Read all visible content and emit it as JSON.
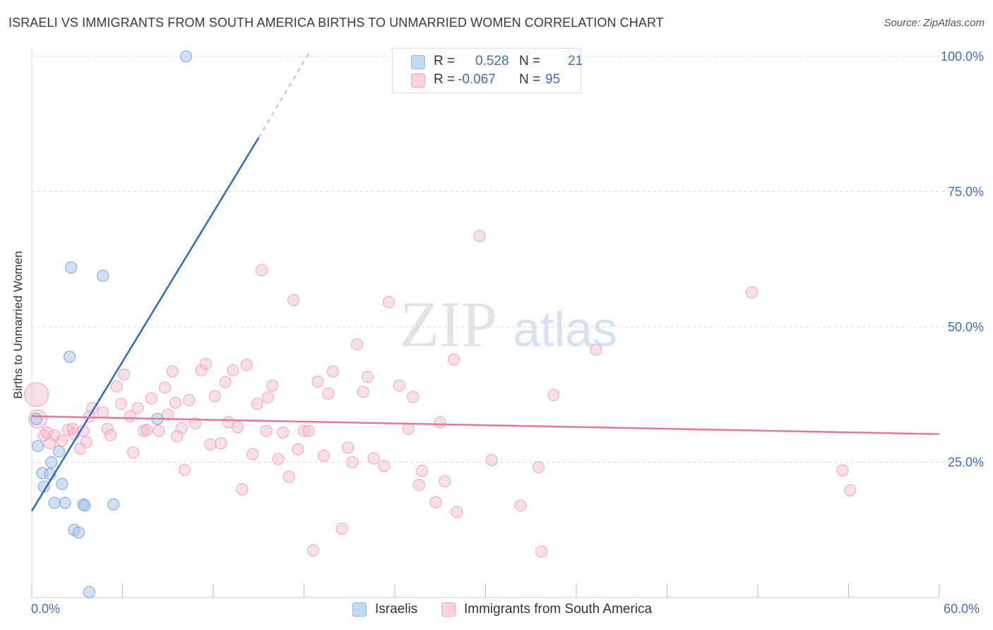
{
  "title": "ISRAELI VS IMMIGRANTS FROM SOUTH AMERICA BIRTHS TO UNMARRIED WOMEN CORRELATION CHART",
  "source": "Source: ZipAtlas.com",
  "watermark": {
    "zip": "ZIP",
    "atlas": "atlas"
  },
  "legend_top": {
    "rows": [
      {
        "r_label": "R =",
        "r_value": "0.528",
        "n_label": "N =",
        "n_value": "21",
        "color": "#aac8f0"
      },
      {
        "r_label": "R =",
        "r_value": "-0.067",
        "n_label": "N =",
        "n_value": "95",
        "color": "#f6b8cb"
      }
    ]
  },
  "legend_bottom": [
    {
      "label": "Israelis",
      "color": "#aac8f0"
    },
    {
      "label": "Immigrants from South America",
      "color": "#f6b8cb"
    }
  ],
  "colors": {
    "blue_line": "#2a6cc8",
    "pink_line": "#e8769a",
    "blue_fill": "#aac8f0",
    "pink_fill": "#f6b8cb",
    "axis_text": "#3c6fc2"
  },
  "chart_data": {
    "type": "scatter",
    "title": "ISRAELI VS IMMIGRANTS FROM SOUTH AMERICA BIRTHS TO UNMARRIED WOMEN CORRELATION CHART",
    "xlabel": "",
    "ylabel": "Births to Unmarried Women",
    "xlim": [
      0,
      60
    ],
    "ylim": [
      0,
      100
    ],
    "x_tick_labels": [
      "0.0%",
      "60.0%"
    ],
    "y_tick_labels": [
      "25.0%",
      "50.0%",
      "75.0%",
      "100.0%"
    ],
    "y_ticks": [
      25,
      50,
      75,
      100
    ],
    "grid": true,
    "series": [
      {
        "name": "Israelis",
        "color": "#aac8f0",
        "r": 0.528,
        "n": 21,
        "trend": {
          "x": [
            0,
            15
          ],
          "y": [
            16,
            85
          ],
          "dashed_to": {
            "x": 18.4,
            "y": 101
          }
        },
        "points": [
          [
            10.2,
            100.0
          ],
          [
            2.6,
            61.0
          ],
          [
            4.7,
            59.5
          ],
          [
            2.5,
            44.5
          ],
          [
            8.3,
            33.0
          ],
          [
            0.3,
            33.0
          ],
          [
            0.4,
            28.0
          ],
          [
            1.8,
            27.0
          ],
          [
            1.3,
            25.0
          ],
          [
            0.7,
            23.0
          ],
          [
            1.2,
            22.8
          ],
          [
            2.0,
            21.0
          ],
          [
            0.8,
            20.5
          ],
          [
            1.5,
            17.5
          ],
          [
            2.2,
            17.5
          ],
          [
            3.4,
            17.2
          ],
          [
            3.5,
            17.0
          ],
          [
            5.4,
            17.2
          ],
          [
            2.8,
            12.5
          ],
          [
            3.1,
            12.0
          ],
          [
            3.8,
            1.0
          ]
        ]
      },
      {
        "name": "Immigrants from South America",
        "color": "#f6b8cb",
        "r": -0.067,
        "n": 95,
        "trend": {
          "x": [
            0,
            60
          ],
          "y": [
            33.5,
            30.2
          ]
        },
        "points": [
          [
            0.3,
            37.5
          ],
          [
            0.4,
            33.0
          ],
          [
            0.8,
            30.0
          ],
          [
            1.0,
            30.5
          ],
          [
            1.5,
            30.0
          ],
          [
            1.2,
            28.5
          ],
          [
            2.0,
            29.0
          ],
          [
            2.4,
            31.0
          ],
          [
            2.7,
            31.2
          ],
          [
            2.8,
            30.2
          ],
          [
            3.2,
            27.5
          ],
          [
            3.4,
            30.8
          ],
          [
            3.8,
            33.5
          ],
          [
            4.0,
            35.0
          ],
          [
            4.7,
            34.2
          ],
          [
            5.0,
            31.2
          ],
          [
            5.2,
            30.0
          ],
          [
            5.6,
            39.0
          ],
          [
            5.9,
            35.8
          ],
          [
            6.1,
            41.2
          ],
          [
            6.5,
            33.5
          ],
          [
            6.7,
            26.8
          ],
          [
            7.0,
            35.0
          ],
          [
            7.4,
            30.8
          ],
          [
            7.6,
            31.0
          ],
          [
            7.9,
            36.8
          ],
          [
            8.4,
            30.8
          ],
          [
            8.8,
            38.8
          ],
          [
            9.0,
            33.8
          ],
          [
            9.3,
            41.8
          ],
          [
            9.5,
            36.0
          ],
          [
            9.9,
            31.3
          ],
          [
            10.1,
            23.6
          ],
          [
            10.4,
            36.5
          ],
          [
            10.8,
            32.2
          ],
          [
            11.2,
            42.0
          ],
          [
            11.5,
            43.2
          ],
          [
            11.8,
            28.3
          ],
          [
            12.1,
            37.2
          ],
          [
            12.5,
            28.5
          ],
          [
            12.8,
            39.8
          ],
          [
            13.0,
            32.4
          ],
          [
            13.3,
            42.0
          ],
          [
            13.6,
            31.5
          ],
          [
            13.9,
            20.0
          ],
          [
            14.2,
            43.0
          ],
          [
            14.6,
            26.5
          ],
          [
            14.9,
            35.8
          ],
          [
            15.2,
            60.5
          ],
          [
            15.6,
            37.0
          ],
          [
            15.9,
            39.2
          ],
          [
            16.3,
            25.6
          ],
          [
            16.6,
            30.5
          ],
          [
            17.0,
            22.3
          ],
          [
            17.3,
            55.0
          ],
          [
            17.6,
            27.4
          ],
          [
            18.0,
            30.8
          ],
          [
            18.3,
            30.8
          ],
          [
            18.6,
            8.7
          ],
          [
            18.9,
            39.9
          ],
          [
            19.3,
            26.2
          ],
          [
            19.6,
            37.7
          ],
          [
            19.9,
            41.8
          ],
          [
            20.5,
            12.7
          ],
          [
            20.9,
            27.7
          ],
          [
            21.2,
            25.0
          ],
          [
            21.5,
            46.8
          ],
          [
            21.9,
            38.0
          ],
          [
            22.2,
            40.8
          ],
          [
            22.6,
            25.7
          ],
          [
            23.3,
            24.3
          ],
          [
            23.6,
            54.6
          ],
          [
            24.3,
            39.2
          ],
          [
            24.9,
            31.2
          ],
          [
            25.2,
            37.1
          ],
          [
            25.6,
            20.8
          ],
          [
            25.8,
            23.4
          ],
          [
            26.7,
            17.6
          ],
          [
            27.3,
            21.5
          ],
          [
            27.9,
            44.0
          ],
          [
            28.1,
            15.8
          ],
          [
            27.0,
            32.4
          ],
          [
            29.6,
            66.8
          ],
          [
            30.4,
            25.4
          ],
          [
            32.3,
            17.0
          ],
          [
            33.5,
            24.1
          ],
          [
            33.7,
            8.5
          ],
          [
            34.5,
            37.4
          ],
          [
            37.3,
            45.8
          ],
          [
            47.6,
            56.4
          ],
          [
            53.6,
            23.5
          ],
          [
            54.1,
            19.8
          ],
          [
            15.5,
            30.8
          ],
          [
            9.6,
            29.8
          ],
          [
            3.6,
            28.7
          ]
        ]
      }
    ],
    "legend_position": "top-center"
  }
}
